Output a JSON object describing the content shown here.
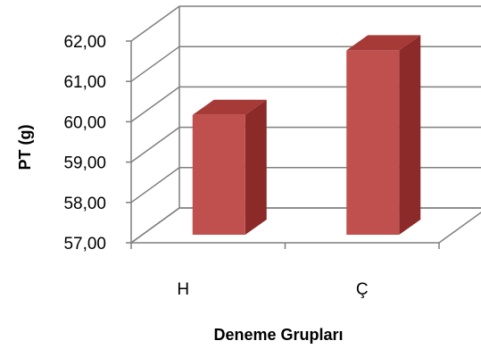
{
  "chart_data": {
    "type": "bar",
    "categories": [
      "H",
      "Ç"
    ],
    "values": [
      59.97,
      61.57
    ],
    "ylim": [
      57,
      62
    ],
    "yticks": [
      "57,00",
      "58,00",
      "59,00",
      "60,00",
      "61,00",
      "62,00"
    ],
    "xlabel": "Deneme Grupları",
    "ylabel": "PT (g)",
    "grid": true,
    "bar_color": "#c0504d",
    "bar_side_color": "#8b2a28",
    "bar_top_color": "#a53a37"
  }
}
